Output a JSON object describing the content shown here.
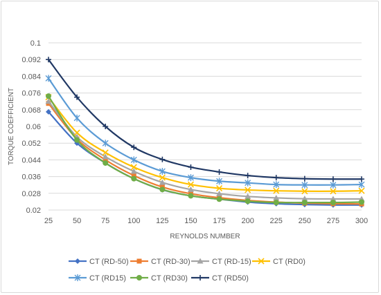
{
  "chart_data": {
    "type": "line",
    "title": "",
    "xlabel": "REYNOLDS NUMBER",
    "ylabel": "TORQUE COEFFICIENT",
    "x": [
      25,
      50,
      75,
      100,
      125,
      150,
      175,
      200,
      225,
      250,
      275,
      300
    ],
    "ylim": [
      0.02,
      0.1
    ],
    "yticks": [
      "0.02",
      "0.028",
      "0.036",
      "0.044",
      "0.052",
      "0.06",
      "0.068",
      "0.076",
      "0.084",
      "0.092",
      "0.1"
    ],
    "xticks": [
      "25",
      "50",
      "75",
      "100",
      "125",
      "150",
      "175",
      "200",
      "225",
      "250",
      "275",
      "300"
    ],
    "grid": true,
    "legend_position": "bottom",
    "series": [
      {
        "name": "CT (RD-50)",
        "color": "#4472C4",
        "marker": "diamond",
        "values": [
          0.067,
          0.052,
          0.0425,
          0.035,
          0.0297,
          0.0268,
          0.0252,
          0.0238,
          0.023,
          0.0226,
          0.0224,
          0.0224
        ]
      },
      {
        "name": "CT (RD-30)",
        "color": "#ED7D31",
        "marker": "square",
        "values": [
          0.071,
          0.054,
          0.044,
          0.0365,
          0.031,
          0.0278,
          0.0259,
          0.0246,
          0.0238,
          0.0233,
          0.023,
          0.0229
        ]
      },
      {
        "name": "CT (RD-15)",
        "color": "#A5A5A5",
        "marker": "triangle",
        "values": [
          0.072,
          0.055,
          0.0455,
          0.0385,
          0.0332,
          0.0298,
          0.0278,
          0.0265,
          0.0258,
          0.0254,
          0.0253,
          0.0253
        ]
      },
      {
        "name": "CT (RD0)",
        "color": "#FFC000",
        "marker": "x",
        "values": [
          0.074,
          0.057,
          0.0475,
          0.0405,
          0.0355,
          0.0322,
          0.0304,
          0.0296,
          0.0292,
          0.029,
          0.029,
          0.0292
        ]
      },
      {
        "name": "CT (RD15)",
        "color": "#5B9BD5",
        "marker": "star",
        "values": [
          0.083,
          0.064,
          0.052,
          0.044,
          0.0385,
          0.0355,
          0.0338,
          0.033,
          0.0322,
          0.032,
          0.032,
          0.0322
        ]
      },
      {
        "name": "CT (RD30)",
        "color": "#70AD47",
        "marker": "circle",
        "values": [
          0.0745,
          0.0535,
          0.0425,
          0.035,
          0.0298,
          0.0268,
          0.0252,
          0.0242,
          0.0236,
          0.0236,
          0.0236,
          0.0238
        ]
      },
      {
        "name": "CT (RD50)",
        "color": "#203864",
        "marker": "plus",
        "values": [
          0.092,
          0.074,
          0.06,
          0.05,
          0.0442,
          0.0405,
          0.0382,
          0.0365,
          0.0355,
          0.035,
          0.0348,
          0.0348
        ]
      }
    ]
  }
}
